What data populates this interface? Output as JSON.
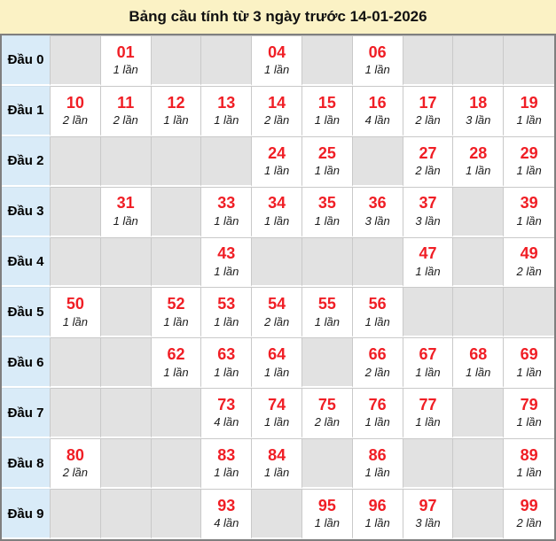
{
  "title": "Bảng cầu tính từ 3 ngày trước 14-01-2026",
  "colors": {
    "title_bg": "#fbf2c5",
    "row_header_bg": "#d9ebf8",
    "empty_cell_bg": "#e2e2e2",
    "filled_cell_bg": "#ffffff",
    "number_red": "#f01e25",
    "outer_border": "#7f7f7f",
    "grid_line": "#c9c9c9"
  },
  "chart_data": {
    "type": "table",
    "title": "Bảng cầu tính từ 3 ngày trước 14-01-2026",
    "column_meaning": "units digit 0-9",
    "rows": [
      {
        "label": "Đầu 0",
        "cells": [
          null,
          {
            "num": "01",
            "count": "1 lần"
          },
          null,
          null,
          {
            "num": "04",
            "count": "1 lần"
          },
          null,
          {
            "num": "06",
            "count": "1 lần"
          },
          null,
          null,
          null
        ]
      },
      {
        "label": "Đầu 1",
        "cells": [
          {
            "num": "10",
            "count": "2 lần"
          },
          {
            "num": "11",
            "count": "2 lần"
          },
          {
            "num": "12",
            "count": "1 lần"
          },
          {
            "num": "13",
            "count": "1 lần"
          },
          {
            "num": "14",
            "count": "2 lần"
          },
          {
            "num": "15",
            "count": "1 lần"
          },
          {
            "num": "16",
            "count": "4 lần"
          },
          {
            "num": "17",
            "count": "2 lần"
          },
          {
            "num": "18",
            "count": "3 lần"
          },
          {
            "num": "19",
            "count": "1 lần"
          }
        ]
      },
      {
        "label": "Đầu 2",
        "cells": [
          null,
          null,
          null,
          null,
          {
            "num": "24",
            "count": "1 lần"
          },
          {
            "num": "25",
            "count": "1 lần"
          },
          null,
          {
            "num": "27",
            "count": "2 lần"
          },
          {
            "num": "28",
            "count": "1 lần"
          },
          {
            "num": "29",
            "count": "1 lần"
          }
        ]
      },
      {
        "label": "Đầu 3",
        "cells": [
          null,
          {
            "num": "31",
            "count": "1 lần"
          },
          null,
          {
            "num": "33",
            "count": "1 lần"
          },
          {
            "num": "34",
            "count": "1 lần"
          },
          {
            "num": "35",
            "count": "1 lần"
          },
          {
            "num": "36",
            "count": "3 lần"
          },
          {
            "num": "37",
            "count": "3 lần"
          },
          null,
          {
            "num": "39",
            "count": "1 lần"
          }
        ]
      },
      {
        "label": "Đầu 4",
        "cells": [
          null,
          null,
          null,
          {
            "num": "43",
            "count": "1 lần"
          },
          null,
          null,
          null,
          {
            "num": "47",
            "count": "1 lần"
          },
          null,
          {
            "num": "49",
            "count": "2 lần"
          }
        ]
      },
      {
        "label": "Đầu 5",
        "cells": [
          {
            "num": "50",
            "count": "1 lần"
          },
          null,
          {
            "num": "52",
            "count": "1 lần"
          },
          {
            "num": "53",
            "count": "1 lần"
          },
          {
            "num": "54",
            "count": "2 lần"
          },
          {
            "num": "55",
            "count": "1 lần"
          },
          {
            "num": "56",
            "count": "1 lần"
          },
          null,
          null,
          null
        ]
      },
      {
        "label": "Đầu 6",
        "cells": [
          null,
          null,
          {
            "num": "62",
            "count": "1 lần"
          },
          {
            "num": "63",
            "count": "1 lần"
          },
          {
            "num": "64",
            "count": "1 lần"
          },
          null,
          {
            "num": "66",
            "count": "2 lần"
          },
          {
            "num": "67",
            "count": "1 lần"
          },
          {
            "num": "68",
            "count": "1 lần"
          },
          {
            "num": "69",
            "count": "1 lần"
          }
        ]
      },
      {
        "label": "Đầu 7",
        "cells": [
          null,
          null,
          null,
          {
            "num": "73",
            "count": "4 lần"
          },
          {
            "num": "74",
            "count": "1 lần"
          },
          {
            "num": "75",
            "count": "2 lần"
          },
          {
            "num": "76",
            "count": "1 lần"
          },
          {
            "num": "77",
            "count": "1 lần"
          },
          null,
          {
            "num": "79",
            "count": "1 lần"
          }
        ]
      },
      {
        "label": "Đầu 8",
        "cells": [
          {
            "num": "80",
            "count": "2 lần"
          },
          null,
          null,
          {
            "num": "83",
            "count": "1 lần"
          },
          {
            "num": "84",
            "count": "1 lần"
          },
          null,
          {
            "num": "86",
            "count": "1 lần"
          },
          null,
          null,
          {
            "num": "89",
            "count": "1 lần"
          }
        ]
      },
      {
        "label": "Đầu 9",
        "cells": [
          null,
          null,
          null,
          {
            "num": "93",
            "count": "4 lần"
          },
          null,
          {
            "num": "95",
            "count": "1 lần"
          },
          {
            "num": "96",
            "count": "1 lần"
          },
          {
            "num": "97",
            "count": "3 lần"
          },
          null,
          {
            "num": "99",
            "count": "2 lần"
          }
        ]
      }
    ]
  }
}
